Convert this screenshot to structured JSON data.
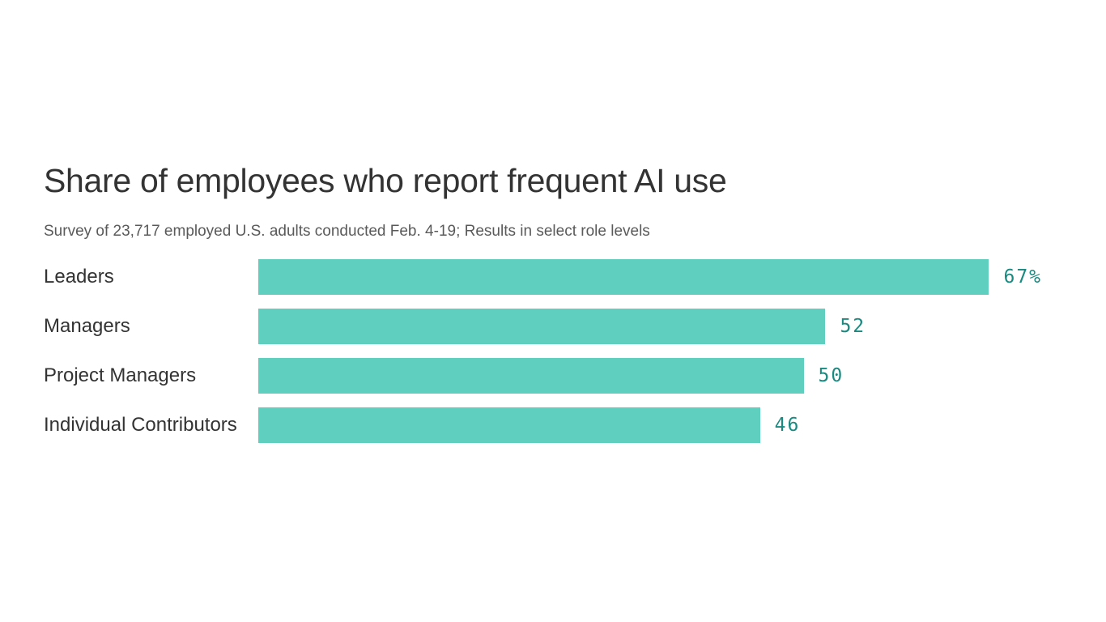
{
  "chart_data": {
    "type": "bar",
    "title": "Share of employees who report frequent AI use",
    "subtitle": "Survey of 23,717 employed U.S. adults conducted Feb. 4-19; Results in select role levels",
    "categories": [
      "Leaders",
      "Managers",
      "Project Managers",
      "Individual Contributors"
    ],
    "values": [
      67,
      52,
      50,
      46
    ],
    "value_labels": [
      "67%",
      "52",
      "50",
      "46"
    ],
    "color": "#5fd0c0"
  }
}
